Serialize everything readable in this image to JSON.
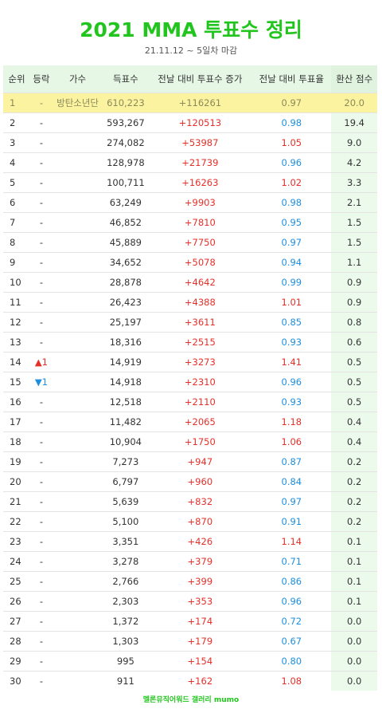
{
  "header": {
    "title": "2021 MMA 투표수 정리",
    "subtitle": "21.11.12 ~ 5일차 마감"
  },
  "table": {
    "columns": [
      "순위",
      "등락",
      "가수",
      "득표수",
      "전날 대비 투표수 증가",
      "전날 대비 투표율",
      "환산 점수"
    ],
    "rows": [
      [
        "1",
        "-",
        "방탄소년단",
        "610,223",
        "+116261",
        "0.97",
        "20.0"
      ],
      [
        "2",
        "-",
        null,
        "593,267",
        "+120513",
        "0.98",
        "19.4"
      ],
      [
        "3",
        "-",
        null,
        "274,082",
        "+53987",
        "1.05",
        "9.0"
      ],
      [
        "4",
        "-",
        null,
        "128,978",
        "+21739",
        "0.96",
        "4.2"
      ],
      [
        "5",
        "-",
        null,
        "100,711",
        "+16263",
        "1.02",
        "3.3"
      ],
      [
        "6",
        "-",
        null,
        "63,249",
        "+9903",
        "0.98",
        "2.1"
      ],
      [
        "7",
        "-",
        null,
        "46,852",
        "+7810",
        "0.95",
        "1.5"
      ],
      [
        "8",
        "-",
        null,
        "45,889",
        "+7750",
        "0.97",
        "1.5"
      ],
      [
        "9",
        "-",
        null,
        "34,652",
        "+5078",
        "0.94",
        "1.1"
      ],
      [
        "10",
        "-",
        null,
        "28,878",
        "+4642",
        "0.99",
        "0.9"
      ],
      [
        "11",
        "-",
        null,
        "26,423",
        "+4388",
        "1.01",
        "0.9"
      ],
      [
        "12",
        "-",
        null,
        "25,197",
        "+3611",
        "0.85",
        "0.8"
      ],
      [
        "13",
        "-",
        null,
        "18,316",
        "+2515",
        "0.93",
        "0.6"
      ],
      [
        "14",
        "▲1",
        null,
        "14,919",
        "+3273",
        "1.41",
        "0.5"
      ],
      [
        "15",
        "▼1",
        null,
        "14,918",
        "+2310",
        "0.96",
        "0.5"
      ],
      [
        "16",
        "-",
        null,
        "12,518",
        "+2110",
        "0.93",
        "0.5"
      ],
      [
        "17",
        "-",
        null,
        "11,482",
        "+2065",
        "1.18",
        "0.4"
      ],
      [
        "18",
        "-",
        null,
        "10,904",
        "+1750",
        "1.06",
        "0.4"
      ],
      [
        "19",
        "-",
        null,
        "7,273",
        "+947",
        "0.87",
        "0.2"
      ],
      [
        "20",
        "-",
        null,
        "6,797",
        "+960",
        "0.84",
        "0.2"
      ],
      [
        "21",
        "-",
        null,
        "5,639",
        "+832",
        "0.97",
        "0.2"
      ],
      [
        "22",
        "-",
        null,
        "5,100",
        "+870",
        "0.91",
        "0.2"
      ],
      [
        "23",
        "-",
        null,
        "3,351",
        "+426",
        "1.14",
        "0.1"
      ],
      [
        "24",
        "-",
        null,
        "3,278",
        "+379",
        "0.71",
        "0.1"
      ],
      [
        "25",
        "-",
        null,
        "2,766",
        "+399",
        "0.86",
        "0.1"
      ],
      [
        "26",
        "-",
        null,
        "2,303",
        "+353",
        "0.96",
        "0.1"
      ],
      [
        "27",
        "-",
        null,
        "1,372",
        "+174",
        "0.72",
        "0.0"
      ],
      [
        "28",
        "-",
        null,
        "1,303",
        "+179",
        "0.67",
        "0.0"
      ],
      [
        "29",
        "-",
        null,
        "995",
        "+154",
        "0.80",
        "0.0"
      ],
      [
        "30",
        "-",
        null,
        "911",
        "+162",
        "1.08",
        "0.0"
      ]
    ]
  },
  "footer": "멜론뮤직어워드 갤러리 mumo"
}
